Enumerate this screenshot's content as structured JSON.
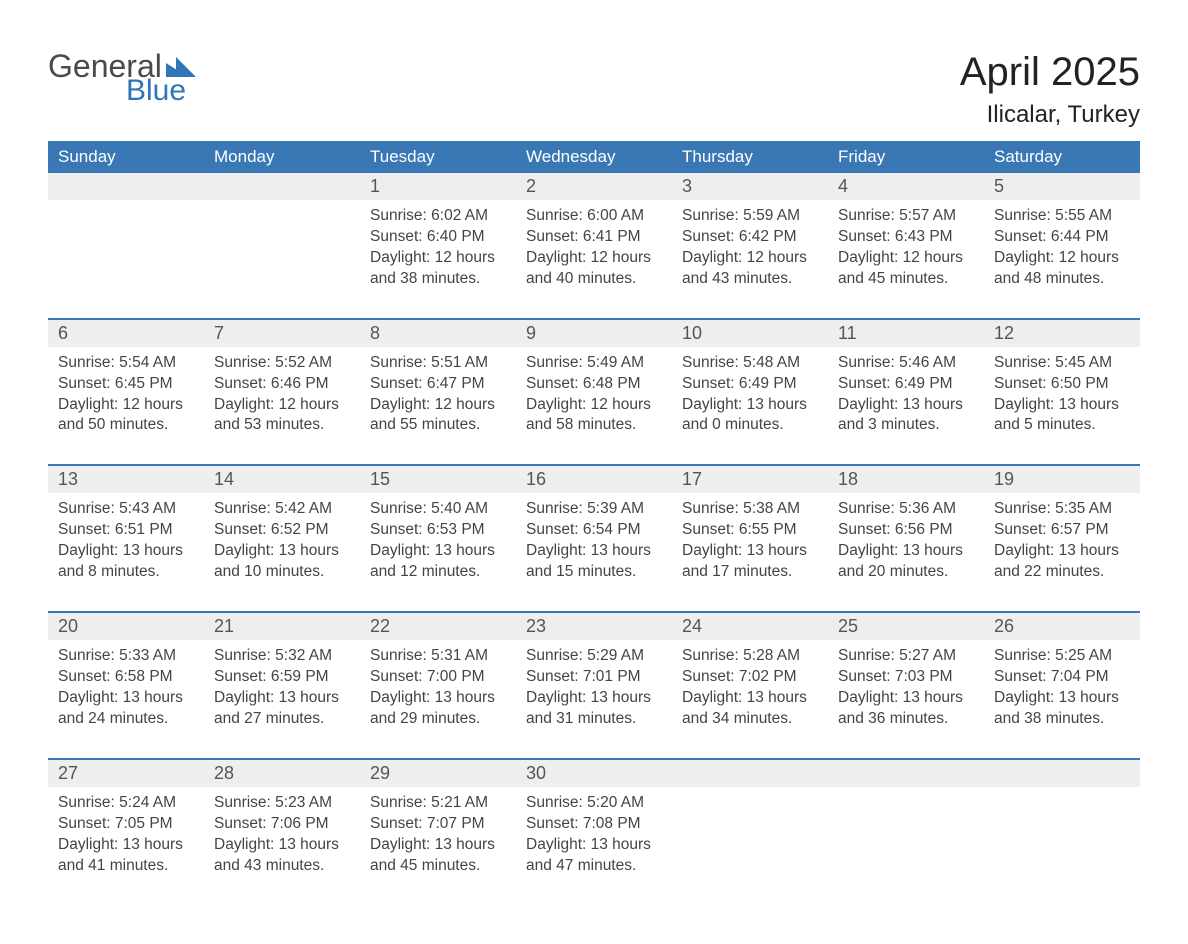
{
  "logo": {
    "text1": "General",
    "text2": "Blue",
    "flag_color": "#2f76b8"
  },
  "title": "April 2025",
  "location": "Ilicalar, Turkey",
  "colors": {
    "header_bg": "#3a78b5",
    "header_text": "#ffffff",
    "date_row_bg": "#eeeeee",
    "week_border": "#3a78b5",
    "body_text": "#444444",
    "title_text": "#222222"
  },
  "typography": {
    "title_fontsize": 40,
    "location_fontsize": 24,
    "dayheader_fontsize": 17,
    "datenum_fontsize": 18,
    "cell_fontsize": 15.5
  },
  "day_names": [
    "Sunday",
    "Monday",
    "Tuesday",
    "Wednesday",
    "Thursday",
    "Friday",
    "Saturday"
  ],
  "weeks": [
    [
      null,
      null,
      {
        "d": "1",
        "sr": "6:02 AM",
        "ss": "6:40 PM",
        "dl": "12 hours and 38 minutes."
      },
      {
        "d": "2",
        "sr": "6:00 AM",
        "ss": "6:41 PM",
        "dl": "12 hours and 40 minutes."
      },
      {
        "d": "3",
        "sr": "5:59 AM",
        "ss": "6:42 PM",
        "dl": "12 hours and 43 minutes."
      },
      {
        "d": "4",
        "sr": "5:57 AM",
        "ss": "6:43 PM",
        "dl": "12 hours and 45 minutes."
      },
      {
        "d": "5",
        "sr": "5:55 AM",
        "ss": "6:44 PM",
        "dl": "12 hours and 48 minutes."
      }
    ],
    [
      {
        "d": "6",
        "sr": "5:54 AM",
        "ss": "6:45 PM",
        "dl": "12 hours and 50 minutes."
      },
      {
        "d": "7",
        "sr": "5:52 AM",
        "ss": "6:46 PM",
        "dl": "12 hours and 53 minutes."
      },
      {
        "d": "8",
        "sr": "5:51 AM",
        "ss": "6:47 PM",
        "dl": "12 hours and 55 minutes."
      },
      {
        "d": "9",
        "sr": "5:49 AM",
        "ss": "6:48 PM",
        "dl": "12 hours and 58 minutes."
      },
      {
        "d": "10",
        "sr": "5:48 AM",
        "ss": "6:49 PM",
        "dl": "13 hours and 0 minutes."
      },
      {
        "d": "11",
        "sr": "5:46 AM",
        "ss": "6:49 PM",
        "dl": "13 hours and 3 minutes."
      },
      {
        "d": "12",
        "sr": "5:45 AM",
        "ss": "6:50 PM",
        "dl": "13 hours and 5 minutes."
      }
    ],
    [
      {
        "d": "13",
        "sr": "5:43 AM",
        "ss": "6:51 PM",
        "dl": "13 hours and 8 minutes."
      },
      {
        "d": "14",
        "sr": "5:42 AM",
        "ss": "6:52 PM",
        "dl": "13 hours and 10 minutes."
      },
      {
        "d": "15",
        "sr": "5:40 AM",
        "ss": "6:53 PM",
        "dl": "13 hours and 12 minutes."
      },
      {
        "d": "16",
        "sr": "5:39 AM",
        "ss": "6:54 PM",
        "dl": "13 hours and 15 minutes."
      },
      {
        "d": "17",
        "sr": "5:38 AM",
        "ss": "6:55 PM",
        "dl": "13 hours and 17 minutes."
      },
      {
        "d": "18",
        "sr": "5:36 AM",
        "ss": "6:56 PM",
        "dl": "13 hours and 20 minutes."
      },
      {
        "d": "19",
        "sr": "5:35 AM",
        "ss": "6:57 PM",
        "dl": "13 hours and 22 minutes."
      }
    ],
    [
      {
        "d": "20",
        "sr": "5:33 AM",
        "ss": "6:58 PM",
        "dl": "13 hours and 24 minutes."
      },
      {
        "d": "21",
        "sr": "5:32 AM",
        "ss": "6:59 PM",
        "dl": "13 hours and 27 minutes."
      },
      {
        "d": "22",
        "sr": "5:31 AM",
        "ss": "7:00 PM",
        "dl": "13 hours and 29 minutes."
      },
      {
        "d": "23",
        "sr": "5:29 AM",
        "ss": "7:01 PM",
        "dl": "13 hours and 31 minutes."
      },
      {
        "d": "24",
        "sr": "5:28 AM",
        "ss": "7:02 PM",
        "dl": "13 hours and 34 minutes."
      },
      {
        "d": "25",
        "sr": "5:27 AM",
        "ss": "7:03 PM",
        "dl": "13 hours and 36 minutes."
      },
      {
        "d": "26",
        "sr": "5:25 AM",
        "ss": "7:04 PM",
        "dl": "13 hours and 38 minutes."
      }
    ],
    [
      {
        "d": "27",
        "sr": "5:24 AM",
        "ss": "7:05 PM",
        "dl": "13 hours and 41 minutes."
      },
      {
        "d": "28",
        "sr": "5:23 AM",
        "ss": "7:06 PM",
        "dl": "13 hours and 43 minutes."
      },
      {
        "d": "29",
        "sr": "5:21 AM",
        "ss": "7:07 PM",
        "dl": "13 hours and 45 minutes."
      },
      {
        "d": "30",
        "sr": "5:20 AM",
        "ss": "7:08 PM",
        "dl": "13 hours and 47 minutes."
      },
      null,
      null,
      null
    ]
  ],
  "labels": {
    "sunrise": "Sunrise: ",
    "sunset": "Sunset: ",
    "daylight": "Daylight: "
  }
}
